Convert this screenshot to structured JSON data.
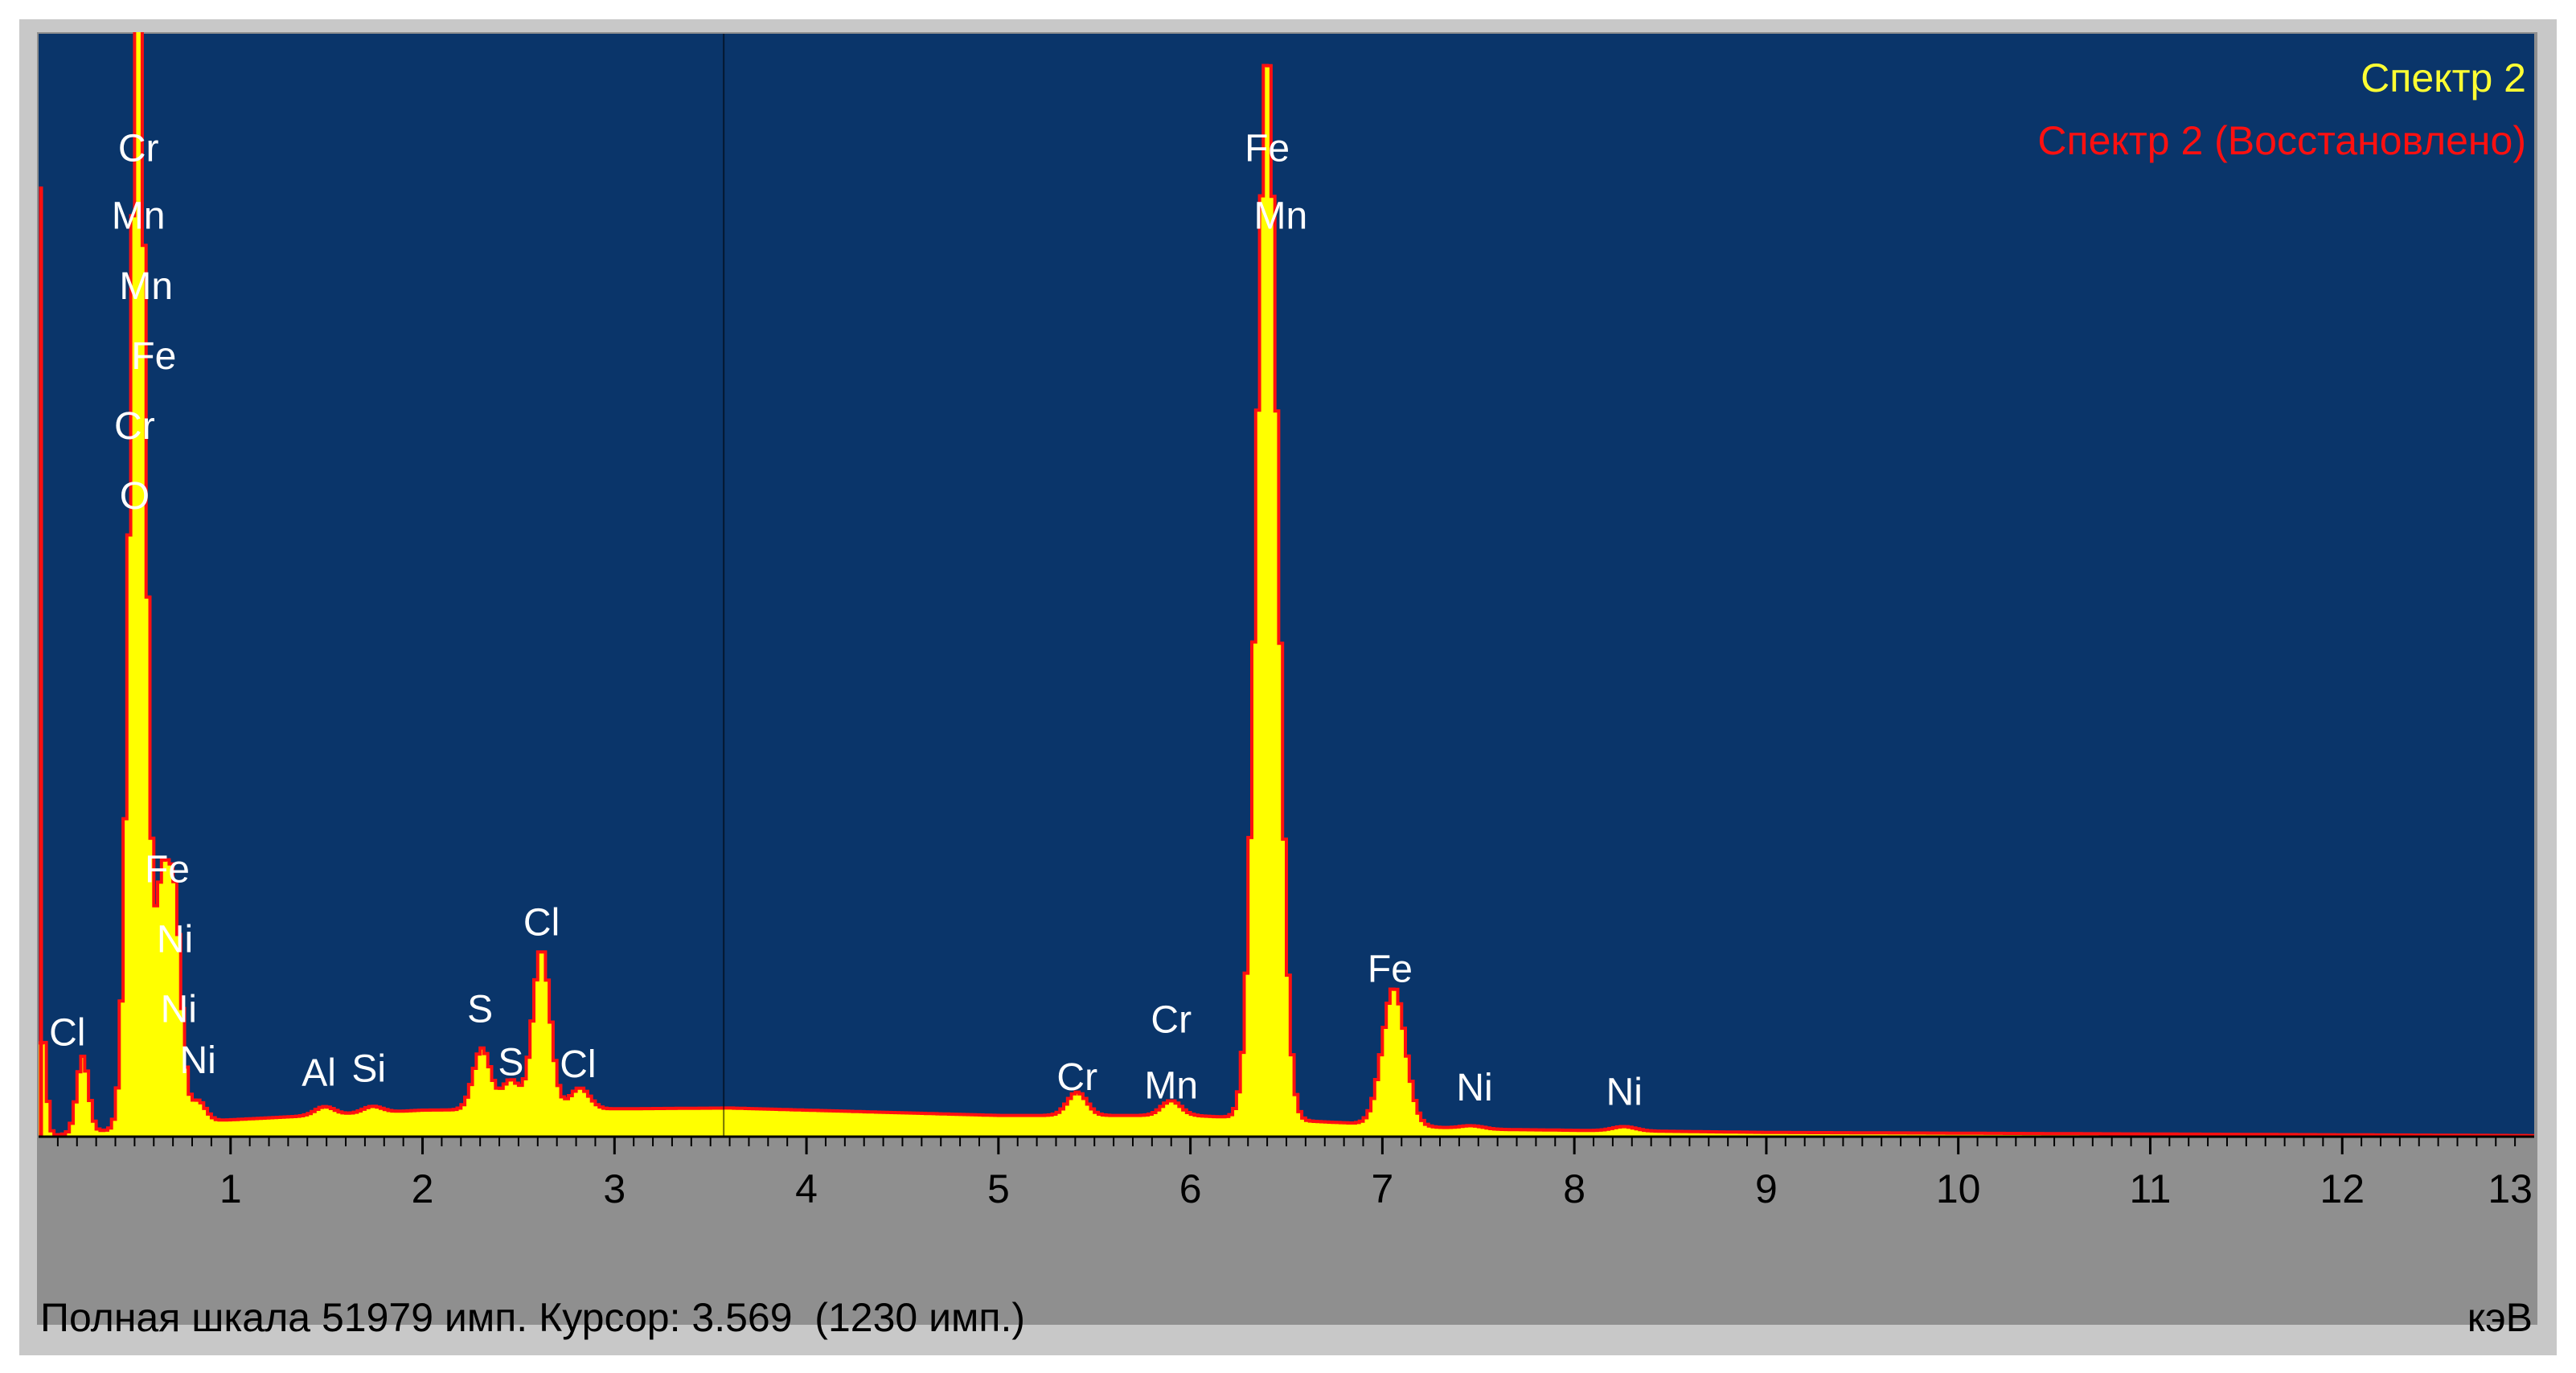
{
  "legend": [
    {
      "label": "Спектр 2",
      "color": "#ffff33"
    },
    {
      "label": "Спектр 2 (Восстановлено)",
      "color": "#ff1010"
    }
  ],
  "status": {
    "text": "Полная шкала 51979 имп. Курсор: 3.569  (1230 имп.)",
    "unit": "кэВ"
  },
  "colors": {
    "plot_background": "#0a356a",
    "spectrum_fill": "#ffff00",
    "reconstructed_line": "#ff1010",
    "panel": "#8f8f8f"
  },
  "chart_data": {
    "type": "area",
    "title": "",
    "xlabel": "кэВ",
    "ylabel": "",
    "xlim": [
      0,
      13
    ],
    "ylim": [
      0,
      52000
    ],
    "x_ticks": [
      "1",
      "2",
      "3",
      "4",
      "5",
      "6",
      "7",
      "8",
      "9",
      "10",
      "11",
      "12",
      "13"
    ],
    "cursor_kev": 3.569,
    "series": [
      {
        "name": "Спектр 2",
        "style": "filled histogram"
      },
      {
        "name": "Спектр 2 (Восстановлено)",
        "style": "outline"
      }
    ],
    "background_counts": [
      [
        0.9,
        750
      ],
      [
        2.0,
        1250
      ],
      [
        3.6,
        1350
      ],
      [
        5.0,
        1000
      ],
      [
        6.0,
        1000
      ],
      [
        7.5,
        350
      ],
      [
        9.0,
        200
      ],
      [
        13.0,
        50
      ]
    ],
    "peaks": [
      {
        "kev": 0.02,
        "counts": 5000,
        "width": 0.02
      },
      {
        "kev": 0.23,
        "counts": 3600,
        "width": 0.03
      },
      {
        "kev": 0.51,
        "counts": 44500,
        "width": 0.04
      },
      {
        "kev": 0.54,
        "counts": 15000,
        "width": 0.03
      },
      {
        "kev": 0.64,
        "counts": 10500,
        "width": 0.035
      },
      {
        "kev": 0.71,
        "counts": 10000,
        "width": 0.035
      },
      {
        "kev": 0.83,
        "counts": 1000,
        "width": 0.04
      },
      {
        "kev": 1.49,
        "counts": 400,
        "width": 0.05
      },
      {
        "kev": 1.74,
        "counts": 300,
        "width": 0.05
      },
      {
        "kev": 2.31,
        "counts": 2900,
        "width": 0.045
      },
      {
        "kev": 2.46,
        "counts": 1400,
        "width": 0.045
      },
      {
        "kev": 2.62,
        "counts": 7600,
        "width": 0.045
      },
      {
        "kev": 2.82,
        "counts": 1000,
        "width": 0.05
      },
      {
        "kev": 5.41,
        "counts": 1100,
        "width": 0.05
      },
      {
        "kev": 5.9,
        "counts": 700,
        "width": 0.05
      },
      {
        "kev": 6.4,
        "counts": 50500,
        "width": 0.055
      },
      {
        "kev": 7.06,
        "counts": 6500,
        "width": 0.06
      },
      {
        "kev": 7.47,
        "counts": 150,
        "width": 0.06
      },
      {
        "kev": 8.26,
        "counts": 200,
        "width": 0.06
      }
    ],
    "peak_labels": [
      {
        "text": "Cr",
        "kev": 0.52,
        "counts": 46000
      },
      {
        "text": "Mn",
        "kev": 0.52,
        "counts": 42800
      },
      {
        "text": "Mn",
        "kev": 0.56,
        "counts": 39500
      },
      {
        "text": "Fe",
        "kev": 0.6,
        "counts": 36200
      },
      {
        "text": "Cr",
        "kev": 0.5,
        "counts": 32900
      },
      {
        "text": "O",
        "kev": 0.5,
        "counts": 29600
      },
      {
        "text": "Fe",
        "kev": 0.67,
        "counts": 12000
      },
      {
        "text": "Ni",
        "kev": 0.71,
        "counts": 8700
      },
      {
        "text": "Ni",
        "kev": 0.73,
        "counts": 5400
      },
      {
        "text": "Cl",
        "kev": 0.15,
        "counts": 4300
      },
      {
        "text": "Ni",
        "kev": 0.83,
        "counts": 3000
      },
      {
        "text": "Al",
        "kev": 1.46,
        "counts": 2400
      },
      {
        "text": "Si",
        "kev": 1.72,
        "counts": 2600
      },
      {
        "text": "S",
        "kev": 2.3,
        "counts": 5400
      },
      {
        "text": "S",
        "kev": 2.46,
        "counts": 2900
      },
      {
        "text": "Cl",
        "kev": 2.62,
        "counts": 9500
      },
      {
        "text": "Cl",
        "kev": 2.81,
        "counts": 2800
      },
      {
        "text": "Cr",
        "kev": 5.41,
        "counts": 2200
      },
      {
        "text": "Cr",
        "kev": 5.9,
        "counts": 4900
      },
      {
        "text": "Mn",
        "kev": 5.9,
        "counts": 1800
      },
      {
        "text": "Fe",
        "kev": 6.4,
        "counts": 46000
      },
      {
        "text": "Mn",
        "kev": 6.47,
        "counts": 42800
      },
      {
        "text": "Fe",
        "kev": 7.04,
        "counts": 7300
      },
      {
        "text": "Ni",
        "kev": 7.48,
        "counts": 1700
      },
      {
        "text": "Ni",
        "kev": 8.26,
        "counts": 1500
      }
    ]
  }
}
